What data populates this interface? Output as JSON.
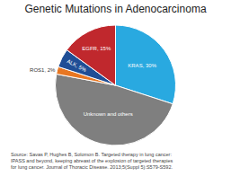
{
  "chart_data": {
    "type": "pie",
    "title": "Genetic Mutations in Adenocarcinoma",
    "categories": [
      "KRAS, 30%",
      "Unknown and others",
      "ROS1, 2%",
      "ALK, 5%",
      "EGFR, 15%"
    ],
    "values": [
      30,
      48,
      2,
      5,
      15
    ],
    "colors": [
      "#29A9E0",
      "#7F7F7F",
      "#E87722",
      "#1F4E96",
      "#C0282D"
    ],
    "annotations": [
      "Source: Savas P, Hughes B, Solomon B. Targeted therapy in lung cancer:\nIPASS and beyond, keeping abreast of the explosion of targeted therapies\nfor lung cancer. Journal of Thoracic Disease. 2013;5(Suppl 5):S579-S592."
    ],
    "legend": false
  }
}
